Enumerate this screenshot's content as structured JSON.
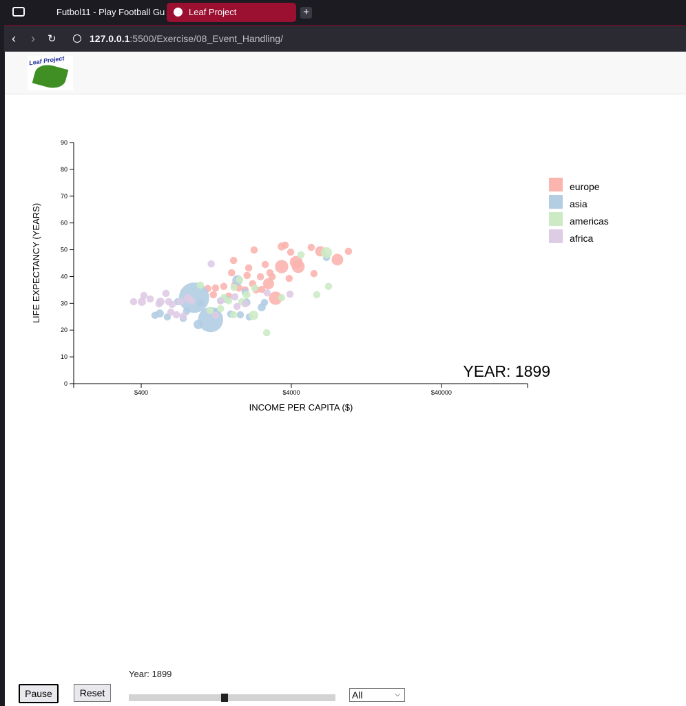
{
  "browser": {
    "tabs": [
      "Futbol11 - Play Football Gu",
      "Leaf Project"
    ],
    "url_host": "127.0.0.1",
    "url_path": ":5500/Exercise/08_Event_Handling/"
  },
  "header": {
    "logo_text": "Leaf Project"
  },
  "chart_data": {
    "type": "scatter",
    "x_label": "INCOME PER CAPITA ($)",
    "y_label": "LIFE EXPECTANCY (YEARS)",
    "annotation": "YEAR: 1899",
    "x_scale": "log",
    "xlim": [
      142,
      150000
    ],
    "ylim": [
      0,
      90
    ],
    "xticks": [
      {
        "value": 400,
        "label": "$400"
      },
      {
        "value": 4000,
        "label": "$4000"
      },
      {
        "value": 40000,
        "label": "$40000"
      }
    ],
    "yticks": [
      0,
      10,
      20,
      30,
      40,
      50,
      60,
      70,
      80,
      90
    ],
    "legend_position": "right",
    "series": [
      {
        "name": "europe",
        "color": "#fbb4ae",
        "x": [
          2260,
          3450,
          3640,
          3960,
          5430,
          6240,
          9610,
          8110,
          3450,
          4310,
          4450,
          5660,
          3870,
          2680,
          2080,
          1650,
          1600,
          2030,
          2490,
          2880,
          2820,
          2980,
          2210,
          1420,
          1250,
          1110,
          1970,
          2330,
          3140,
          1680,
          1790,
          1530,
          2540,
          1210
        ],
        "values": [
          49.9,
          51.2,
          51.7,
          49.1,
          50.9,
          49.4,
          49.4,
          46.3,
          43.7,
          45.3,
          43.7,
          41.1,
          39.3,
          44.5,
          43.2,
          46.0,
          41.4,
          40.4,
          39.9,
          41.4,
          37.3,
          39.9,
          37.3,
          36.3,
          35.7,
          35.5,
          35.0,
          35.0,
          31.9,
          36.8,
          35.7,
          32.7,
          35.2,
          33.2
        ],
        "size": [
          2,
          4,
          2,
          2,
          2,
          15,
          2,
          25,
          40,
          35,
          35,
          2,
          2,
          2,
          2,
          2,
          2,
          2,
          2,
          2,
          20,
          2,
          2,
          2,
          2,
          2,
          2,
          2,
          40,
          2,
          2,
          2,
          2,
          2
        ]
      },
      {
        "name": "asia",
        "color": "#b3cde3",
        "x": [
          900,
          1160,
          960,
          494,
          532,
          597,
          762,
          1000,
          1750,
          1970,
          2010,
          1830,
          2100,
          2540,
          2650,
          6860,
          1470,
          1350,
          803,
          1250,
          1580,
          700
        ],
        "values": [
          32.1,
          23.9,
          22.1,
          25.5,
          26.2,
          24.9,
          24.4,
          30.1,
          38.6,
          34.2,
          30.3,
          25.7,
          24.9,
          28.5,
          30.3,
          47.1,
          31.6,
          30.9,
          27.0,
          27.0,
          26.0,
          30.6
        ],
        "size": [
          400,
          250,
          10,
          2,
          4,
          2,
          2,
          4,
          15,
          2,
          4,
          2,
          2,
          4,
          2,
          2,
          4,
          2,
          2,
          2,
          2,
          2
        ]
      },
      {
        "name": "americas",
        "color": "#ccebc5",
        "x": [
          6860,
          4640,
          7080,
          5910,
          2740,
          2240,
          1660,
          2010,
          1810,
          1420,
          1530,
          1350,
          1650,
          990,
          1150,
          3450,
          1870,
          2280
        ],
        "values": [
          48.9,
          48.1,
          36.3,
          33.2,
          19.0,
          25.5,
          36.0,
          33.2,
          38.8,
          32.1,
          30.9,
          28.0,
          25.7,
          36.8,
          27.3,
          32.1,
          30.6,
          35.7
        ],
        "size": [
          20,
          2,
          2,
          2,
          2,
          10,
          2,
          4,
          2,
          2,
          2,
          2,
          2,
          2,
          2,
          2,
          2,
          2
        ]
      },
      {
        "name": "africa",
        "color": "#decbe4",
        "x": [
          356,
          404,
          417,
          459,
          526,
          537,
          585,
          610,
          643,
          630,
          729,
          820,
          865,
          762,
          686,
          1170,
          1350,
          1250,
          1740,
          3920,
          2760,
          1970,
          1680
        ],
        "values": [
          30.6,
          30.6,
          32.9,
          31.6,
          29.8,
          30.6,
          33.7,
          30.6,
          29.6,
          26.7,
          30.6,
          31.9,
          30.9,
          25.2,
          25.7,
          44.7,
          30.9,
          25.5,
          28.8,
          33.4,
          33.9,
          29.8,
          32.4
        ],
        "size": [
          2,
          5,
          2,
          2,
          2,
          5,
          2,
          2,
          2,
          2,
          2,
          5,
          2,
          2,
          2,
          2,
          2,
          2,
          2,
          2,
          2,
          2,
          2
        ]
      }
    ]
  },
  "controls": {
    "pause": "Pause",
    "reset": "Reset",
    "year_label": "Year: 1899",
    "filter": "All"
  }
}
